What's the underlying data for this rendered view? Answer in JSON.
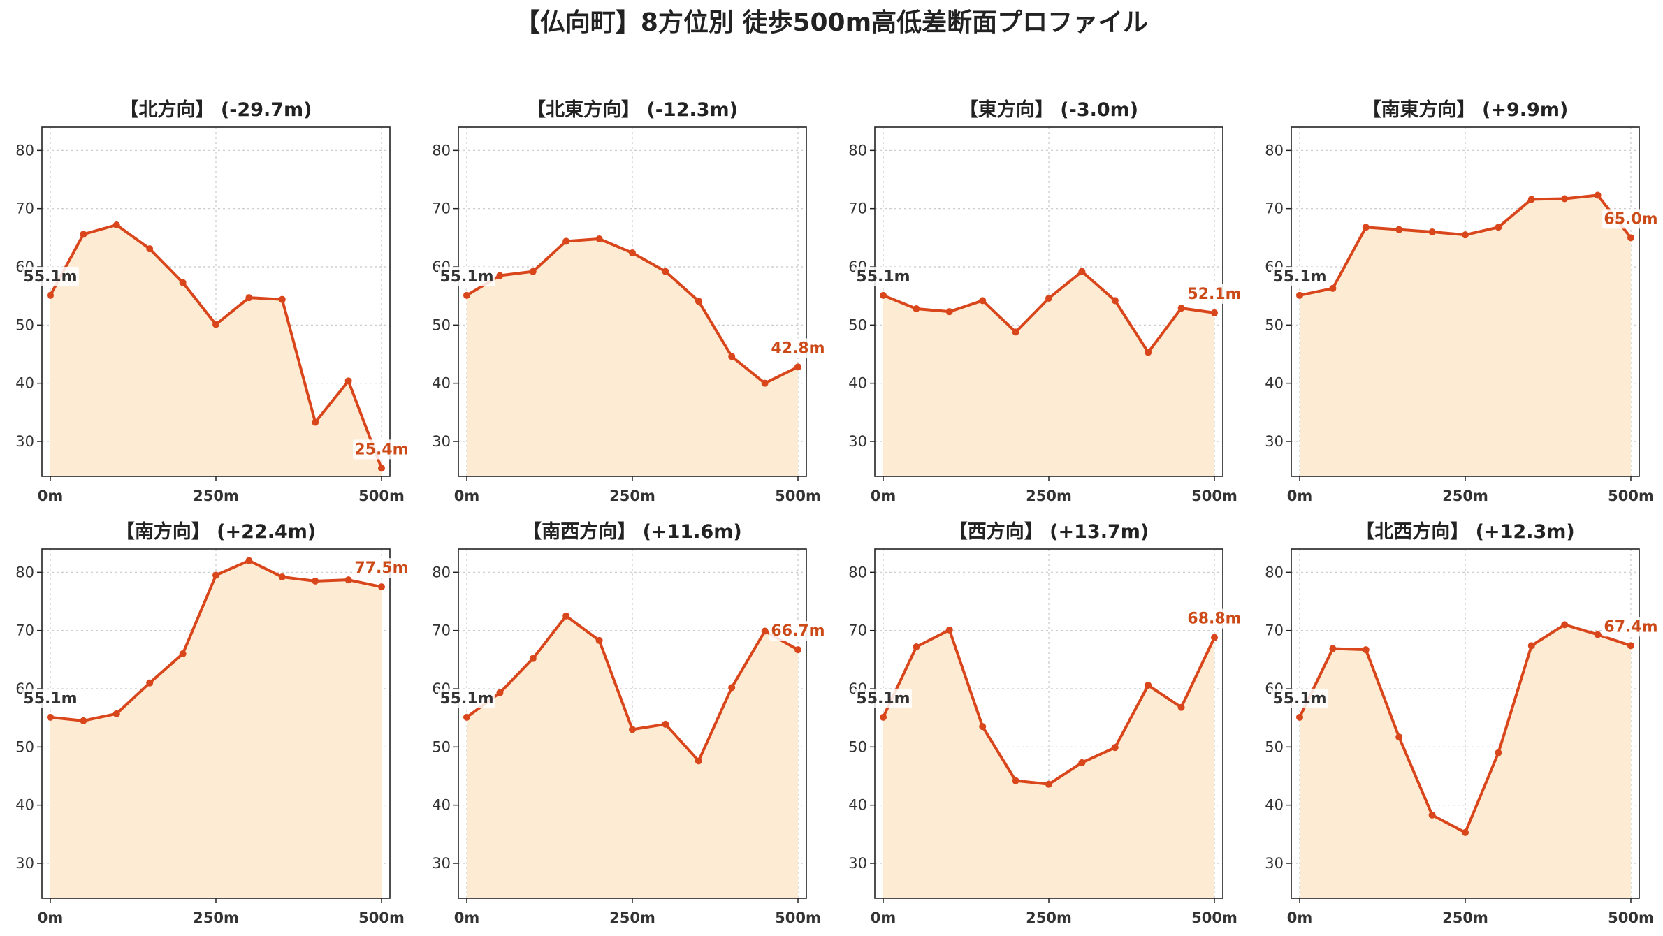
{
  "figure": {
    "title": "【仏向町】8方位別 徒歩500m高低差断面プロファイル",
    "colors": {
      "line": "#d9461b",
      "fill": "#fdecd3",
      "grid": "#c8c8c8",
      "start_label": "#333333",
      "end_label": "#cc4a18"
    }
  },
  "chart_data": [
    {
      "type": "area",
      "title": "【北方向】 (-29.7m)",
      "x": [
        0,
        50,
        100,
        150,
        200,
        250,
        300,
        350,
        400,
        450,
        500
      ],
      "x_ticks": [
        "0m",
        "250m",
        "500m"
      ],
      "y": [
        55.1,
        65.6,
        67.2,
        63.1,
        57.3,
        50.1,
        54.7,
        54.4,
        33.3,
        40.4,
        25.4
      ],
      "ylim": [
        24,
        84
      ],
      "y_ticks": [
        30,
        40,
        50,
        60,
        70,
        80
      ],
      "start_label": "55.1m",
      "end_label": "25.4m",
      "grid": true
    },
    {
      "type": "area",
      "title": "【北東方向】 (-12.3m)",
      "x": [
        0,
        50,
        100,
        150,
        200,
        250,
        300,
        350,
        400,
        450,
        500
      ],
      "x_ticks": [
        "0m",
        "250m",
        "500m"
      ],
      "y": [
        55.1,
        58.5,
        59.2,
        64.4,
        64.8,
        62.4,
        59.2,
        54.1,
        44.6,
        40.0,
        42.8
      ],
      "ylim": [
        24,
        84
      ],
      "y_ticks": [
        30,
        40,
        50,
        60,
        70,
        80
      ],
      "start_label": "55.1m",
      "end_label": "42.8m",
      "grid": true
    },
    {
      "type": "area",
      "title": "【東方向】 (-3.0m)",
      "x": [
        0,
        50,
        100,
        150,
        200,
        250,
        300,
        350,
        400,
        450,
        500
      ],
      "x_ticks": [
        "0m",
        "250m",
        "500m"
      ],
      "y": [
        55.1,
        52.8,
        52.3,
        54.2,
        48.8,
        54.6,
        59.2,
        54.2,
        45.3,
        52.9,
        52.1
      ],
      "ylim": [
        24,
        84
      ],
      "y_ticks": [
        30,
        40,
        50,
        60,
        70,
        80
      ],
      "start_label": "55.1m",
      "end_label": "52.1m",
      "grid": true
    },
    {
      "type": "area",
      "title": "【南東方向】 (+9.9m)",
      "x": [
        0,
        50,
        100,
        150,
        200,
        250,
        300,
        350,
        400,
        450,
        500
      ],
      "x_ticks": [
        "0m",
        "250m",
        "500m"
      ],
      "y": [
        55.1,
        56.3,
        66.8,
        66.4,
        66.0,
        65.5,
        66.8,
        71.6,
        71.7,
        72.3,
        65.0
      ],
      "ylim": [
        24,
        84
      ],
      "y_ticks": [
        30,
        40,
        50,
        60,
        70,
        80
      ],
      "start_label": "55.1m",
      "end_label": "65.0m",
      "grid": true
    },
    {
      "type": "area",
      "title": "【南方向】 (+22.4m)",
      "x": [
        0,
        50,
        100,
        150,
        200,
        250,
        300,
        350,
        400,
        450,
        500
      ],
      "x_ticks": [
        "0m",
        "250m",
        "500m"
      ],
      "y": [
        55.1,
        54.5,
        55.7,
        61.0,
        66.0,
        79.5,
        82.0,
        79.2,
        78.5,
        78.7,
        77.5
      ],
      "ylim": [
        24,
        84
      ],
      "y_ticks": [
        30,
        40,
        50,
        60,
        70,
        80
      ],
      "start_label": "55.1m",
      "end_label": "77.5m",
      "grid": true
    },
    {
      "type": "area",
      "title": "【南西方向】 (+11.6m)",
      "x": [
        0,
        50,
        100,
        150,
        200,
        250,
        300,
        350,
        400,
        450,
        500
      ],
      "x_ticks": [
        "0m",
        "250m",
        "500m"
      ],
      "y": [
        55.1,
        59.3,
        65.2,
        72.5,
        68.3,
        53.0,
        53.9,
        47.6,
        60.2,
        69.9,
        66.7
      ],
      "ylim": [
        24,
        84
      ],
      "y_ticks": [
        30,
        40,
        50,
        60,
        70,
        80
      ],
      "start_label": "55.1m",
      "end_label": "66.7m",
      "grid": true
    },
    {
      "type": "area",
      "title": "【西方向】 (+13.7m)",
      "x": [
        0,
        50,
        100,
        150,
        200,
        250,
        300,
        350,
        400,
        450,
        500
      ],
      "x_ticks": [
        "0m",
        "250m",
        "500m"
      ],
      "y": [
        55.1,
        67.2,
        70.1,
        53.5,
        44.2,
        43.6,
        47.3,
        49.9,
        60.6,
        56.8,
        68.8
      ],
      "ylim": [
        24,
        84
      ],
      "y_ticks": [
        30,
        40,
        50,
        60,
        70,
        80
      ],
      "start_label": "55.1m",
      "end_label": "68.8m",
      "grid": true
    },
    {
      "type": "area",
      "title": "【北西方向】 (+12.3m)",
      "x": [
        0,
        50,
        100,
        150,
        200,
        250,
        300,
        350,
        400,
        450,
        500
      ],
      "x_ticks": [
        "0m",
        "250m",
        "500m"
      ],
      "y": [
        55.1,
        66.9,
        66.7,
        51.7,
        38.3,
        35.3,
        49.0,
        67.4,
        71.0,
        69.3,
        67.4
      ],
      "ylim": [
        24,
        84
      ],
      "y_ticks": [
        30,
        40,
        50,
        60,
        70,
        80
      ],
      "start_label": "55.1m",
      "end_label": "67.4m",
      "grid": true
    }
  ]
}
